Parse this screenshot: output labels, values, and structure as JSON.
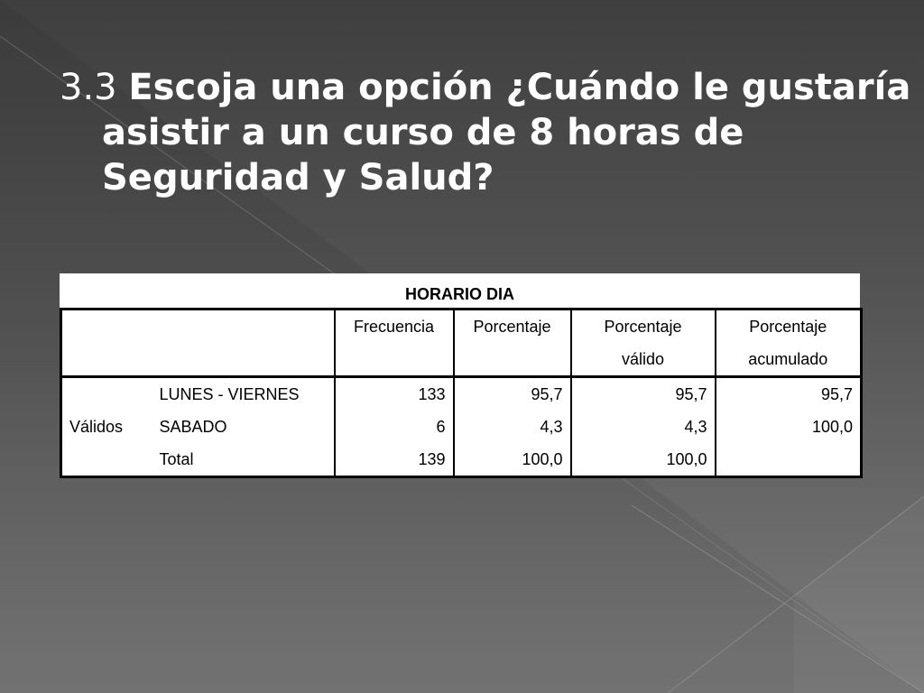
{
  "slide": {
    "title_number": "3.3",
    "title_line1": "Escoja una opción ¿Cuándo le gustaría",
    "title_line2": "asistir a un curso de 8 horas de",
    "title_line3": "Seguridad y Salud?"
  },
  "table": {
    "title": "HORARIO DIA",
    "headers": {
      "frecuencia": "Frecuencia",
      "porcentaje": "Porcentaje",
      "porcentaje_valido_1": "Porcentaje",
      "porcentaje_valido_2": "válido",
      "porcentaje_acum_1": "Porcentaje",
      "porcentaje_acum_2": "acumulado"
    },
    "group_label": "Válidos",
    "rows": [
      {
        "label": "LUNES - VIERNES",
        "frecuencia": "133",
        "porcentaje": "95,7",
        "valido": "95,7",
        "acumulado": "95,7"
      },
      {
        "label": "SABADO",
        "frecuencia": "6",
        "porcentaje": "4,3",
        "valido": "4,3",
        "acumulado": "100,0"
      },
      {
        "label": "Total",
        "frecuencia": "139",
        "porcentaje": "100,0",
        "valido": "100,0",
        "acumulado": ""
      }
    ]
  }
}
